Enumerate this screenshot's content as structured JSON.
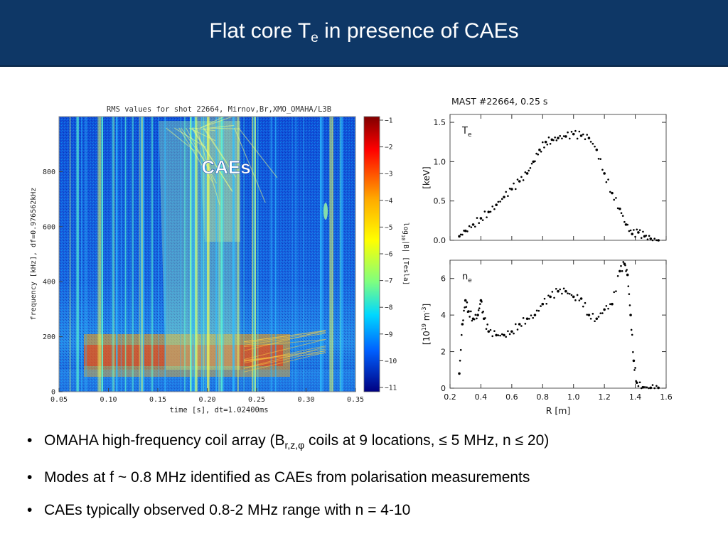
{
  "title": {
    "main": "Flat core T",
    "sub": "e",
    "rest": " in presence of CAEs"
  },
  "spectrogram": {
    "title": "RMS values for shot 22664,  Mirnov,Br,XMO_OMAHA/L3B",
    "xlabel": "time [s], dt=1.02400ms",
    "ylabel": "frequency [kHz], df=0.976562kHz",
    "annotation": "CAEs",
    "x_ticks": [
      "0.05",
      "0.10",
      "0.15",
      "0.20",
      "0.25",
      "0.30",
      "0.35"
    ],
    "y_ticks": [
      "0",
      "200",
      "400",
      "600",
      "800"
    ],
    "colorbar_ticks": [
      "−1",
      "−2",
      "−3",
      "−4",
      "−5",
      "−6",
      "−7",
      "−8",
      "−9",
      "−10",
      "−11"
    ],
    "colorbar_label": "log10|B| [Tesla]",
    "colorbar_label_main": "log",
    "colorbar_label_sub": "10",
    "colorbar_label_rest": "|B| [Tesla]"
  },
  "chart_data": [
    {
      "type": "scatter",
      "title": "MAST #22664, 0.25 s",
      "series": [
        {
          "name": "T_e"
        }
      ],
      "series_label_main": "T",
      "series_label_sub": "e",
      "ylabel": "[keV]",
      "xlim": [
        0.2,
        1.6
      ],
      "ylim": [
        0.0,
        1.6
      ],
      "y_ticks": [
        "0.0",
        "0.5",
        "1.0",
        "1.5"
      ],
      "x": [
        0.26,
        0.3,
        0.35,
        0.4,
        0.45,
        0.5,
        0.55,
        0.6,
        0.65,
        0.7,
        0.74,
        0.78,
        0.82,
        0.86,
        0.9,
        0.95,
        1.0,
        1.05,
        1.1,
        1.15,
        1.2,
        1.25,
        1.3,
        1.34,
        1.38,
        1.42,
        1.46,
        1.5,
        1.55
      ],
      "y": [
        0.05,
        0.12,
        0.2,
        0.28,
        0.36,
        0.45,
        0.55,
        0.65,
        0.75,
        0.85,
        1.0,
        1.15,
        1.25,
        1.28,
        1.3,
        1.32,
        1.35,
        1.33,
        1.3,
        1.15,
        0.85,
        0.6,
        0.4,
        0.2,
        0.08,
        0.1,
        0.05,
        0.02,
        0.0
      ]
    },
    {
      "type": "scatter",
      "series": [
        {
          "name": "n_e"
        }
      ],
      "series_label": "n",
      "series_label_sub": "e",
      "xlabel": "R [m]",
      "ylabel": "[10^19 m^-3]",
      "ylabel_pre": "[10",
      "ylabel_sup1": "19",
      "ylabel_mid": " m",
      "ylabel_sup2": "-3",
      "ylabel_end": "]",
      "xlim": [
        0.2,
        1.6
      ],
      "ylim": [
        0,
        7
      ],
      "x_ticks": [
        "0.2",
        "0.4",
        "0.6",
        "0.8",
        "1.0",
        "1.2",
        "1.4",
        "1.6"
      ],
      "y_ticks": [
        "0",
        "2",
        "4",
        "6"
      ],
      "x": [
        0.26,
        0.28,
        0.3,
        0.32,
        0.35,
        0.38,
        0.4,
        0.42,
        0.45,
        0.5,
        0.55,
        0.6,
        0.65,
        0.7,
        0.75,
        0.8,
        0.85,
        0.9,
        0.95,
        1.0,
        1.05,
        1.1,
        1.15,
        1.2,
        1.25,
        1.3,
        1.33,
        1.35,
        1.37,
        1.39,
        1.41,
        1.45,
        1.5,
        1.55
      ],
      "y": [
        0.8,
        3.5,
        4.8,
        4.2,
        3.8,
        4.0,
        4.8,
        3.8,
        3.1,
        2.9,
        2.9,
        3.1,
        3.5,
        3.8,
        4.0,
        4.6,
        5.0,
        5.3,
        5.3,
        5.0,
        4.9,
        4.0,
        3.8,
        4.3,
        4.6,
        6.4,
        6.8,
        6.2,
        4.0,
        1.5,
        0.3,
        0.05,
        0.02,
        0.02
      ]
    }
  ],
  "bullets": [
    {
      "pre": "OMAHA high-frequency coil array (B",
      "sub": "r,z,φ",
      "post": " coils at 9 locations, ≤ 5 MHz, n ≤ 20)"
    },
    {
      "text": "Modes at f ~ 0.8 MHz identified as CAEs from polarisation measurements"
    },
    {
      "text": "CAEs typically observed 0.8-2 MHz range with n = 4-10"
    }
  ],
  "colors": {
    "title_bg": "#0e3766",
    "annotation": "#ffffff",
    "profile_points": "#000000"
  }
}
